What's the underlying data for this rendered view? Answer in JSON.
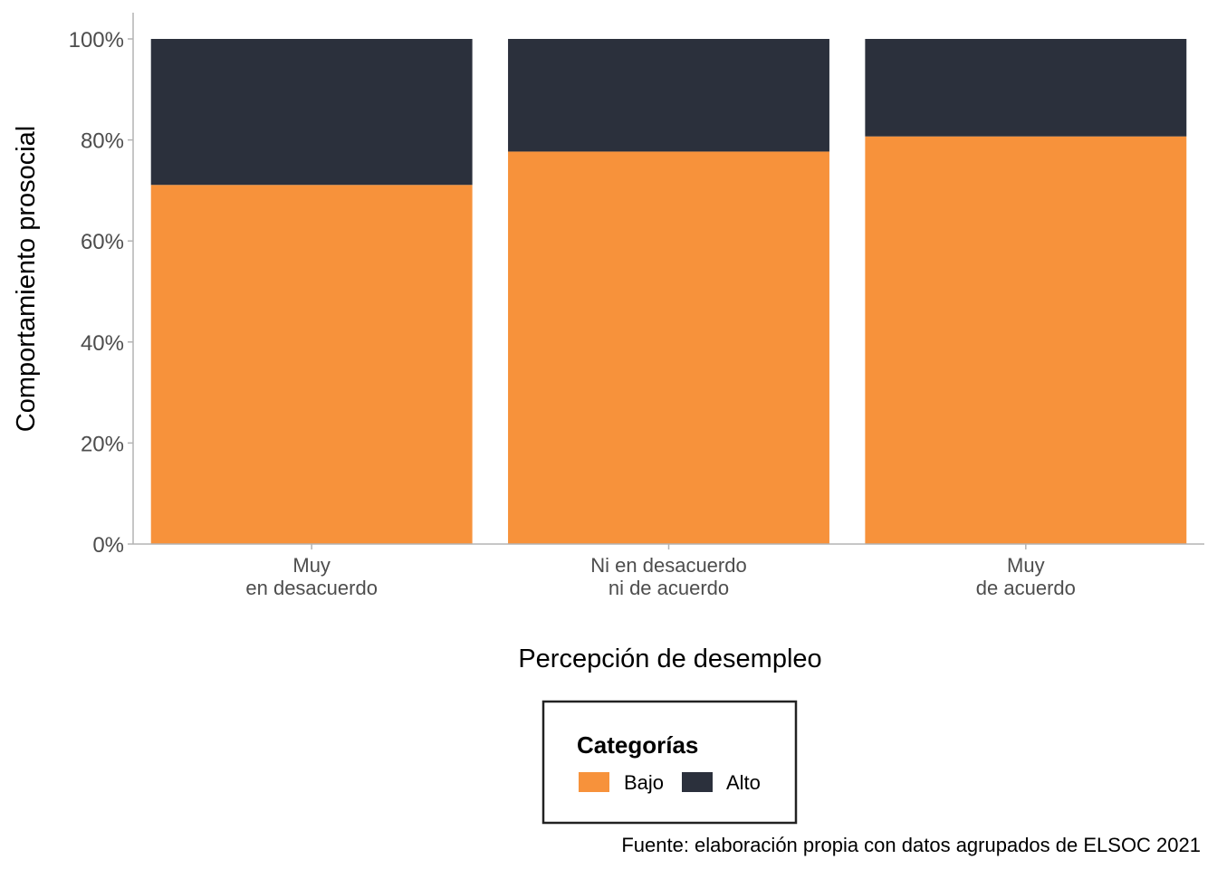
{
  "chart_data": {
    "type": "bar",
    "stacked": true,
    "percent": true,
    "categories": [
      [
        "Muy",
        "en desacuerdo"
      ],
      [
        "Ni en desacuerdo",
        "ni de acuerdo"
      ],
      [
        "Muy",
        "de acuerdo"
      ]
    ],
    "series": [
      {
        "name": "Bajo",
        "color": "#f7923b",
        "values": [
          71.1,
          77.7,
          80.7
        ]
      },
      {
        "name": "Alto",
        "color": "#2b303c",
        "values": [
          28.9,
          22.3,
          19.3
        ]
      }
    ],
    "yticks": [
      "0%",
      "20%",
      "40%",
      "60%",
      "80%",
      "100%"
    ],
    "ylim": [
      0,
      100
    ],
    "xlabel": "Percepción de desempleo",
    "ylabel": "Comportamiento prosocial",
    "legend": {
      "title": "Categorías",
      "position": "bottom"
    },
    "caption": "Fuente: elaboración propia con datos agrupados de ELSOC 2021"
  }
}
